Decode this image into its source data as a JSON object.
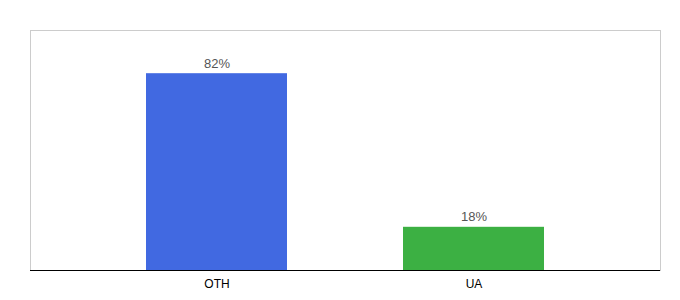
{
  "chart_data": {
    "type": "bar",
    "categories": [
      "OTH",
      "UA"
    ],
    "values": [
      82,
      18
    ],
    "value_labels": [
      "82%",
      "18%"
    ],
    "colors": [
      "#4169e1",
      "#3cb043"
    ],
    "ylim": [
      0,
      100
    ],
    "data_labels": true,
    "grid": false,
    "tick_labels": "x"
  }
}
